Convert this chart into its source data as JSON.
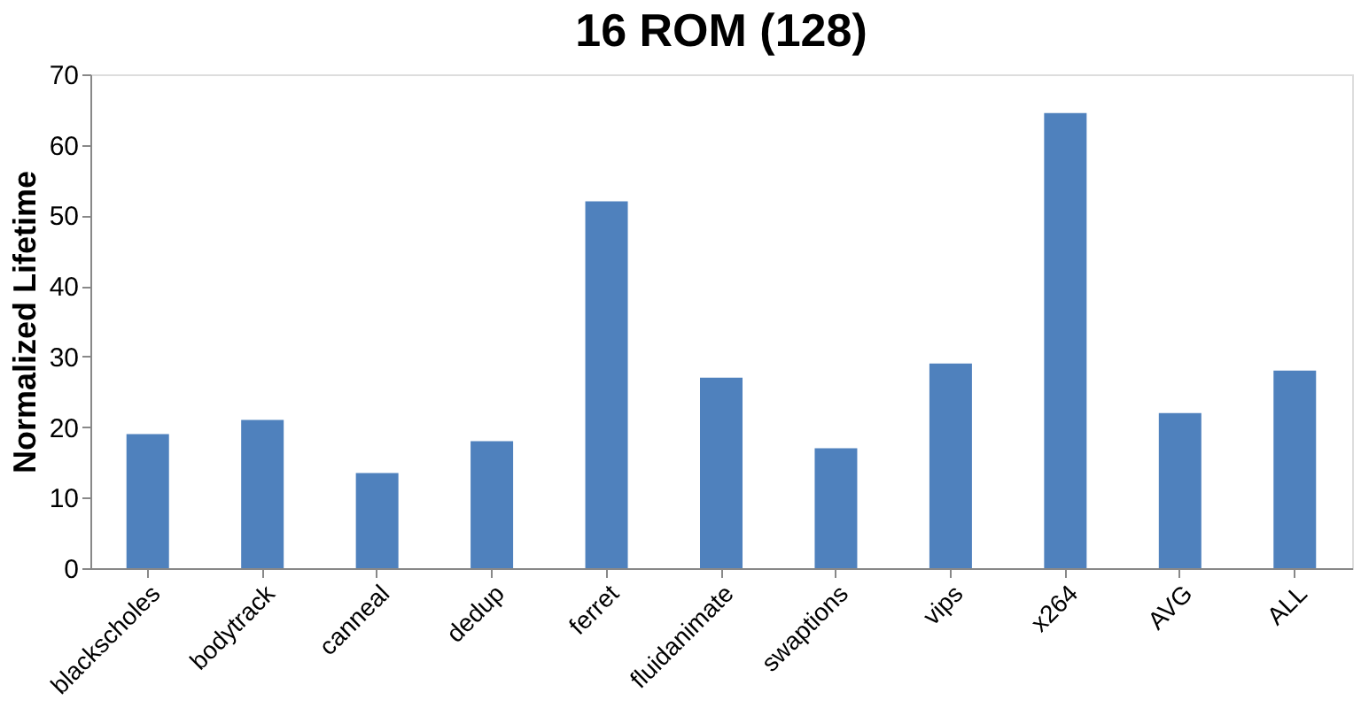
{
  "chart_data": {
    "type": "bar",
    "title": "16 ROM (128)",
    "ylabel": "Normalized Lifetime",
    "categories": [
      "blackscholes",
      "bodytrack",
      "canneal",
      "dedup",
      "ferret",
      "fluidanimate",
      "swaptions",
      "vips",
      "x264",
      "AVG",
      "ALL"
    ],
    "values": [
      19,
      21,
      13.5,
      18,
      52,
      27,
      17,
      29,
      64.5,
      22,
      28
    ],
    "color": "#4f81bd",
    "ylim": [
      0,
      70
    ],
    "yticks": [
      0,
      10,
      20,
      30,
      40,
      50,
      60,
      70
    ],
    "grid": false
  }
}
